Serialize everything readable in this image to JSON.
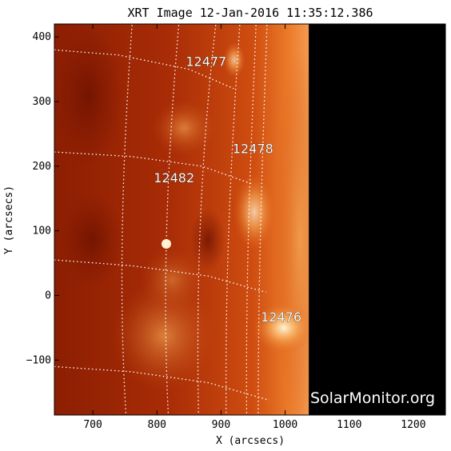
{
  "title": "XRT Image 12-Jan-2016 11:35:12.386",
  "axes": {
    "xlabel": "X (arcsecs)",
    "ylabel": "Y (arcsecs)",
    "xlim": [
      640,
      1250
    ],
    "ylim": [
      -185,
      420
    ],
    "xticks": [
      700,
      800,
      900,
      1000,
      1100,
      1200
    ],
    "yticks": [
      -100,
      0,
      100,
      200,
      300,
      400
    ],
    "xtick_labels": [
      "700",
      "800",
      "900",
      "1000",
      "1100",
      "1200"
    ],
    "ytick_labels": [
      "−100",
      "0",
      "100",
      "200",
      "300",
      "400"
    ]
  },
  "data_extent": {
    "x_max": 1037
  },
  "regions": [
    {
      "label": "12477",
      "x": 845,
      "y": 355
    },
    {
      "label": "12478",
      "x": 918,
      "y": 220
    },
    {
      "label": "12482",
      "x": 795,
      "y": 175
    },
    {
      "label": "12476",
      "x": 962,
      "y": -40
    }
  ],
  "watermark": "SolarMonitor.org",
  "colors": {
    "background_space": "#000000",
    "disk_dark": "#7a1500",
    "disk_mid": "#b83508",
    "disk_bright": "#e56a1a",
    "limb_glow": "#f6a560",
    "grid_lines": "#ffffff"
  }
}
